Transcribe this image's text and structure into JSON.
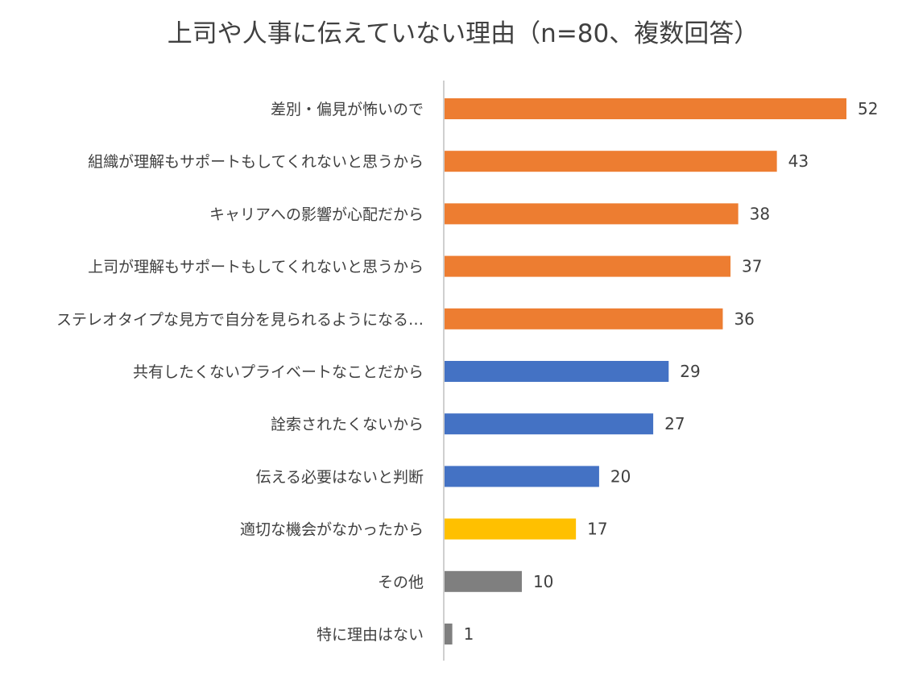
{
  "chart_data": {
    "type": "bar",
    "orientation": "horizontal",
    "title": "上司や人事に伝えていない理由（n=80、複数回答）",
    "xlabel": "",
    "ylabel": "",
    "xlim": [
      0,
      52
    ],
    "grid": false,
    "legend": "none",
    "categories": [
      "差別・偏見が怖いので",
      "組織が理解もサポートもしてくれないと思うから",
      "キャリアへの影響が心配だから",
      "上司が理解もサポートもしてくれないと思うから",
      "ステレオタイプな見方で自分を見られるようになる…",
      "共有したくないプライベートなことだから",
      "詮索されたくないから",
      "伝える必要はないと判断",
      "適切な機会がなかったから",
      "その他",
      "特に理由はない"
    ],
    "values": [
      52,
      43,
      38,
      37,
      36,
      29,
      27,
      20,
      17,
      10,
      1
    ],
    "colors": [
      "#ED7D31",
      "#ED7D31",
      "#ED7D31",
      "#ED7D31",
      "#ED7D31",
      "#4472C4",
      "#4472C4",
      "#4472C4",
      "#FFC000",
      "#7F7F7F",
      "#7F7F7F"
    ],
    "axis_color": "#BFBFBF"
  }
}
